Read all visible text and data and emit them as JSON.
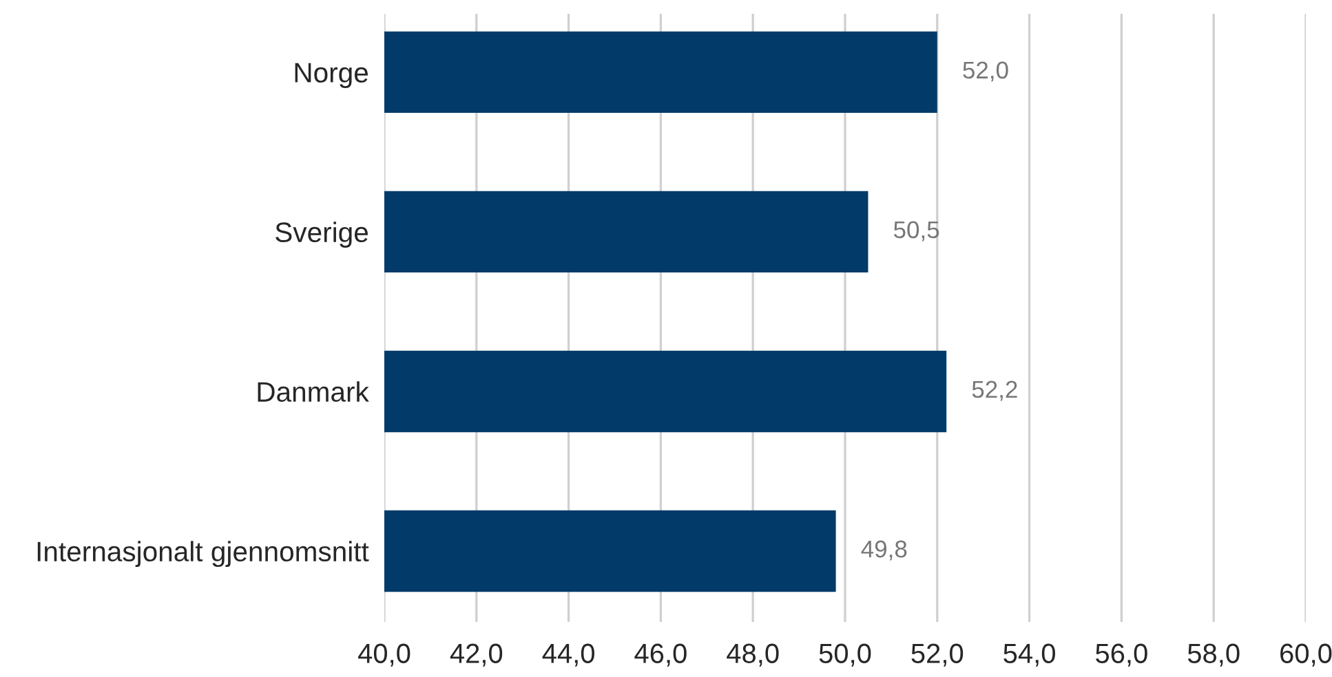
{
  "chart_data": {
    "type": "bar",
    "orientation": "horizontal",
    "categories": [
      "Norge",
      "Sverige",
      "Danmark",
      "Internasjonalt gjennomsnitt"
    ],
    "values": [
      52.0,
      50.5,
      52.2,
      49.8
    ],
    "value_labels": [
      "52,0",
      "50,5",
      "52,2",
      "49,8"
    ],
    "color": "#023a69",
    "xlim": [
      40,
      60
    ],
    "xticks": [
      {
        "value": 40,
        "label": "40,0"
      },
      {
        "value": 42,
        "label": "42,0"
      },
      {
        "value": 44,
        "label": "44,0"
      },
      {
        "value": 46,
        "label": "46,0"
      },
      {
        "value": 48,
        "label": "48,0"
      },
      {
        "value": 50,
        "label": "50,0"
      },
      {
        "value": 52,
        "label": "52,0"
      },
      {
        "value": 54,
        "label": "54,0"
      },
      {
        "value": 56,
        "label": "56,0"
      },
      {
        "value": 58,
        "label": "58,0"
      },
      {
        "value": 60,
        "label": "60,0"
      }
    ],
    "grid": "x"
  }
}
